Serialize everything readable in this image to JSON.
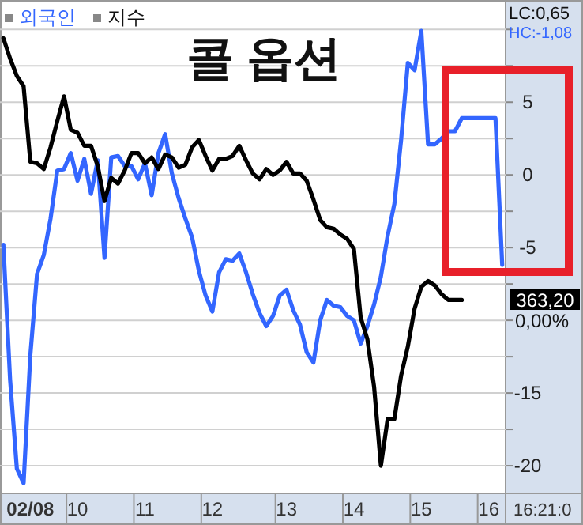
{
  "chart_data": {
    "type": "line",
    "title": "콜 옵션",
    "legend": "top left",
    "grid": "y",
    "line_style": "solid",
    "marker": "none",
    "categories": [
      null,
      null,
      null,
      null,
      "02/08",
      null,
      null,
      null,
      null,
      null,
      null,
      "10",
      null,
      null,
      null,
      null,
      null,
      null,
      null,
      null,
      null,
      "11",
      null,
      null,
      null,
      null,
      null,
      null,
      null,
      null,
      null,
      "12",
      null,
      null,
      null,
      null,
      null,
      null,
      null,
      null,
      null,
      null,
      "13",
      null,
      null,
      null,
      null,
      null,
      null,
      null,
      null,
      null,
      "14",
      null,
      null,
      null,
      null,
      null,
      null,
      null,
      null,
      null,
      "15",
      null,
      null,
      null,
      null,
      null,
      null,
      null,
      null,
      null,
      "16",
      null,
      null
    ],
    "ylim": [
      -21.9,
      11.7
    ],
    "yticks": [
      {
        "value": 10,
        "label": null
      },
      {
        "value": 7.5,
        "label": null
      },
      5,
      {
        "value": 2.5,
        "label": null
      },
      0,
      {
        "value": -2.5,
        "label": null
      },
      -5,
      {
        "value": -7.5,
        "label": null
      },
      {
        "value": -10,
        "label": null
      },
      {
        "value": -12.5,
        "label": null
      },
      -15,
      {
        "value": -17.5,
        "label": null
      },
      -20
    ],
    "series": [
      {
        "name": "외국인",
        "color": "#3366ff",
        "values": [
          -4.8,
          -14.1,
          -20.2,
          -21.2,
          -12.4,
          -6.8,
          -5.5,
          -3.0,
          0.3,
          0.4,
          1.5,
          -0.4,
          1.1,
          -1.3,
          1.0,
          -5.7,
          1.2,
          1.3,
          0.6,
          0.6,
          -0.3,
          0.8,
          -1.4,
          1.5,
          2.8,
          0.1,
          -1.6,
          -3.0,
          -4.3,
          -6.6,
          -8.3,
          -9.4,
          -6.7,
          -5.8,
          -5.9,
          -5.4,
          -6.7,
          -8.2,
          -9.5,
          -10.4,
          -9.7,
          -8.3,
          -7.9,
          -9.3,
          -10.3,
          -12.2,
          -12.9,
          -10.0,
          -8.6,
          -9.0,
          -9.1,
          -9.7,
          -10.0,
          -11.6,
          -10.4,
          -8.9,
          -7.0,
          -4.2,
          -2.0,
          2.4,
          7.7,
          7.2,
          9.9,
          2.1,
          2.1,
          2.5,
          3.0,
          3.0,
          3.9,
          3.9,
          3.9,
          3.9,
          3.9,
          3.9,
          -6.2
        ]
      },
      {
        "name": "지수",
        "color": "#000000",
        "values": [
          9.4,
          8.0,
          6.8,
          6.1,
          0.9,
          0.8,
          0.4,
          1.9,
          3.7,
          5.4,
          3.1,
          2.9,
          2.0,
          2.0,
          0.6,
          -1.8,
          -0.2,
          -0.6,
          0.3,
          1.5,
          1.5,
          0.8,
          1.2,
          0.4,
          1.4,
          1.2,
          0.5,
          0.7,
          1.9,
          2.4,
          1.3,
          0.3,
          1.1,
          1.1,
          1.3,
          2.0,
          1.0,
          0.1,
          -0.3,
          0.4,
          0.0,
          0.3,
          0.9,
          0.1,
          0.1,
          -0.4,
          -1.7,
          -3.1,
          -3.6,
          -3.7,
          -4.1,
          -4.4,
          -5.1,
          -9.8,
          -11.3,
          -14.6,
          -20.0,
          -16.8,
          -16.8,
          -13.8,
          -11.8,
          -9.2,
          -7.7,
          -7.3,
          -7.6,
          -8.2,
          -8.6,
          -8.6,
          -8.6,
          null,
          null,
          null,
          null,
          null,
          null
        ]
      }
    ],
    "annotations": [
      "LC:0,65",
      "HC:-1,08",
      "363,20",
      "0,00%",
      "16:21:0"
    ]
  }
}
